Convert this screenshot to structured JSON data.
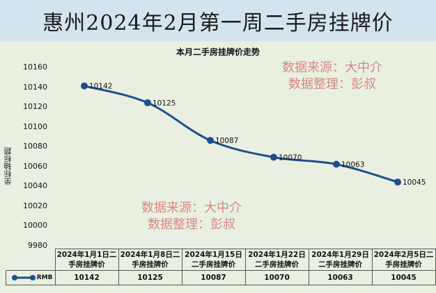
{
  "header": {
    "title": "惠州2024年2月第一周二手房挂牌价"
  },
  "watermarks": [
    {
      "line1": "数据来源：大中介",
      "line2": "数据整理：彭叔"
    },
    {
      "line1": "数据来源：大中介",
      "line2": "数据整理：彭叔"
    }
  ],
  "legend": {
    "series_name": "RMB"
  },
  "colors": {
    "series": "#1f4e8c",
    "watermark": "#d98682",
    "title_band": "#d3e4ef",
    "background": "#e9f0e1"
  },
  "chart_data": {
    "type": "line",
    "title": "本月二手房挂牌价走势",
    "xlabel": "",
    "ylabel": "坐标轴标题",
    "ylim": [
      9980,
      10160
    ],
    "yticks": [
      10160,
      10140,
      10120,
      10100,
      10080,
      10060,
      10040,
      10020,
      10000,
      9980
    ],
    "grid": false,
    "legend_position": "data-table",
    "categories": [
      "2024年1月1日二手房挂牌价",
      "2024年1月8日二手房挂牌价",
      "2024年1月15日二手房挂牌价",
      "2024年1月22日二手房挂牌价",
      "2024年1月29日二手房挂牌价",
      "2024年2月5日二手房挂牌价"
    ],
    "category_lines": [
      [
        "2024年1月1日二",
        "手房挂牌价"
      ],
      [
        "2024年1月8日二",
        "手房挂牌价"
      ],
      [
        "2024年1月15日",
        "二手房挂牌价"
      ],
      [
        "2024年1月22日",
        "二手房挂牌价"
      ],
      [
        "2024年1月29日",
        "二手房挂牌价"
      ],
      [
        "2024年2月5日二",
        "手房挂牌价"
      ]
    ],
    "series": [
      {
        "name": "RMB",
        "values": [
          10142,
          10125,
          10087,
          10070,
          10063,
          10045
        ]
      }
    ],
    "data_labels": [
      "10142",
      "10125",
      "10087",
      "10070",
      "10063",
      "10045"
    ]
  }
}
